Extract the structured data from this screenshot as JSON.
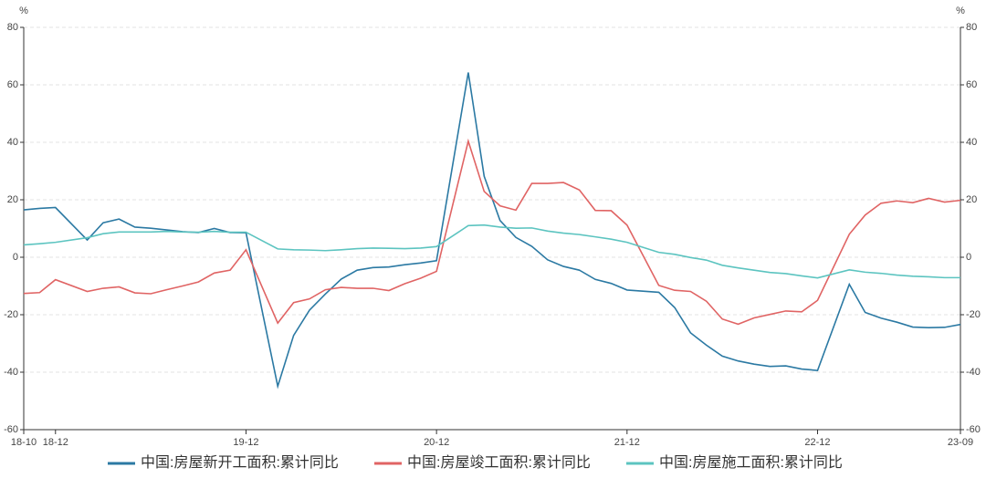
{
  "chart_data": {
    "type": "line",
    "ylabel": "%",
    "y2label": "%",
    "x": [
      "18-10",
      "18-11",
      "18-12",
      "19-02",
      "19-03",
      "19-04",
      "19-05",
      "19-06",
      "19-07",
      "19-08",
      "19-09",
      "19-10",
      "19-11",
      "19-12",
      "20-02",
      "20-03",
      "20-04",
      "20-05",
      "20-06",
      "20-07",
      "20-08",
      "20-09",
      "20-10",
      "20-11",
      "20-12",
      "21-02",
      "21-03",
      "21-04",
      "21-05",
      "21-06",
      "21-07",
      "21-08",
      "21-09",
      "21-10",
      "21-11",
      "21-12",
      "22-02",
      "22-03",
      "22-04",
      "22-05",
      "22-06",
      "22-07",
      "22-08",
      "22-09",
      "22-10",
      "22-11",
      "22-12",
      "23-02",
      "23-03",
      "23-04",
      "23-05",
      "23-06",
      "23-07",
      "23-08",
      "23-09"
    ],
    "xlim": [
      "18-10",
      "23-09"
    ],
    "xticks": [
      "18-10",
      "18-12",
      "19-12",
      "20-12",
      "21-12",
      "22-12",
      "23-09"
    ],
    "ylim": [
      -60,
      80
    ],
    "yticks": [
      -60,
      -40,
      -20,
      0,
      20,
      40,
      60,
      80
    ],
    "y2lim": [
      -60,
      80
    ],
    "y2ticks": [
      -60,
      -40,
      -20,
      0,
      20,
      40,
      60,
      80
    ],
    "grid": true,
    "legend": "bottom",
    "series": [
      {
        "name": "中国:房屋新开工面积:累计同比",
        "color": "#2b79a3",
        "values": [
          16.5,
          17,
          17.3,
          6,
          12,
          13.3,
          10.5,
          10.1,
          9.5,
          8.9,
          8.6,
          10,
          8.6,
          8.5,
          -44.9,
          -27.2,
          -18.4,
          -12.8,
          -7.6,
          -4.5,
          -3.6,
          -3.4,
          -2.6,
          -2.0,
          -1.2,
          64.3,
          28.2,
          12.8,
          6.9,
          3.8,
          -0.9,
          -3.2,
          -4.5,
          -7.7,
          -9.1,
          -11.4,
          -12.2,
          -17.5,
          -26.3,
          -30.6,
          -34.4,
          -36.1,
          -37.2,
          -38,
          -37.8,
          -38.9,
          -39.4,
          -9.4,
          -19.2,
          -21.2,
          -22.6,
          -24.3,
          -24.5,
          -24.4,
          -23.4
        ]
      },
      {
        "name": "中国:房屋竣工面积:累计同比",
        "color": "#e06464",
        "values": [
          -12.6,
          -12.3,
          -7.8,
          -11.9,
          -10.8,
          -10.3,
          -12.4,
          -12.7,
          -11.3,
          -10,
          -8.6,
          -5.5,
          -4.5,
          2.6,
          -22.9,
          -15.8,
          -14.5,
          -11.3,
          -10.5,
          -10.8,
          -10.8,
          -11.6,
          -9.2,
          -7.3,
          -4.9,
          40.4,
          22.9,
          17.9,
          16.4,
          25.7,
          25.7,
          26,
          23.4,
          16.3,
          16.2,
          11.2,
          -9.8,
          -11.5,
          -11.9,
          -15.3,
          -21.5,
          -23.3,
          -21.1,
          -19.9,
          -18.7,
          -19,
          -15,
          8,
          14.7,
          18.8,
          19.6,
          19,
          20.5,
          19.2,
          19.8
        ]
      },
      {
        "name": "中国:房屋施工面积:累计同比",
        "color": "#5cc4c0",
        "values": [
          4.3,
          4.7,
          5.2,
          6.8,
          8.2,
          8.8,
          8.8,
          8.8,
          9,
          8.8,
          8.7,
          9,
          8.7,
          8.7,
          2.9,
          2.6,
          2.5,
          2.3,
          2.6,
          3,
          3.2,
          3.1,
          3,
          3.2,
          3.7,
          11,
          11.2,
          10.5,
          10.1,
          10.2,
          9.1,
          8.4,
          7.9,
          7.1,
          6.3,
          5.2,
          1.7,
          1,
          -0.1,
          -1,
          -2.8,
          -3.7,
          -4.5,
          -5.3,
          -5.7,
          -6.5,
          -7.2,
          -4.4,
          -5.2,
          -5.6,
          -6.2,
          -6.6,
          -6.8,
          -7.1,
          -7.1
        ]
      }
    ]
  }
}
